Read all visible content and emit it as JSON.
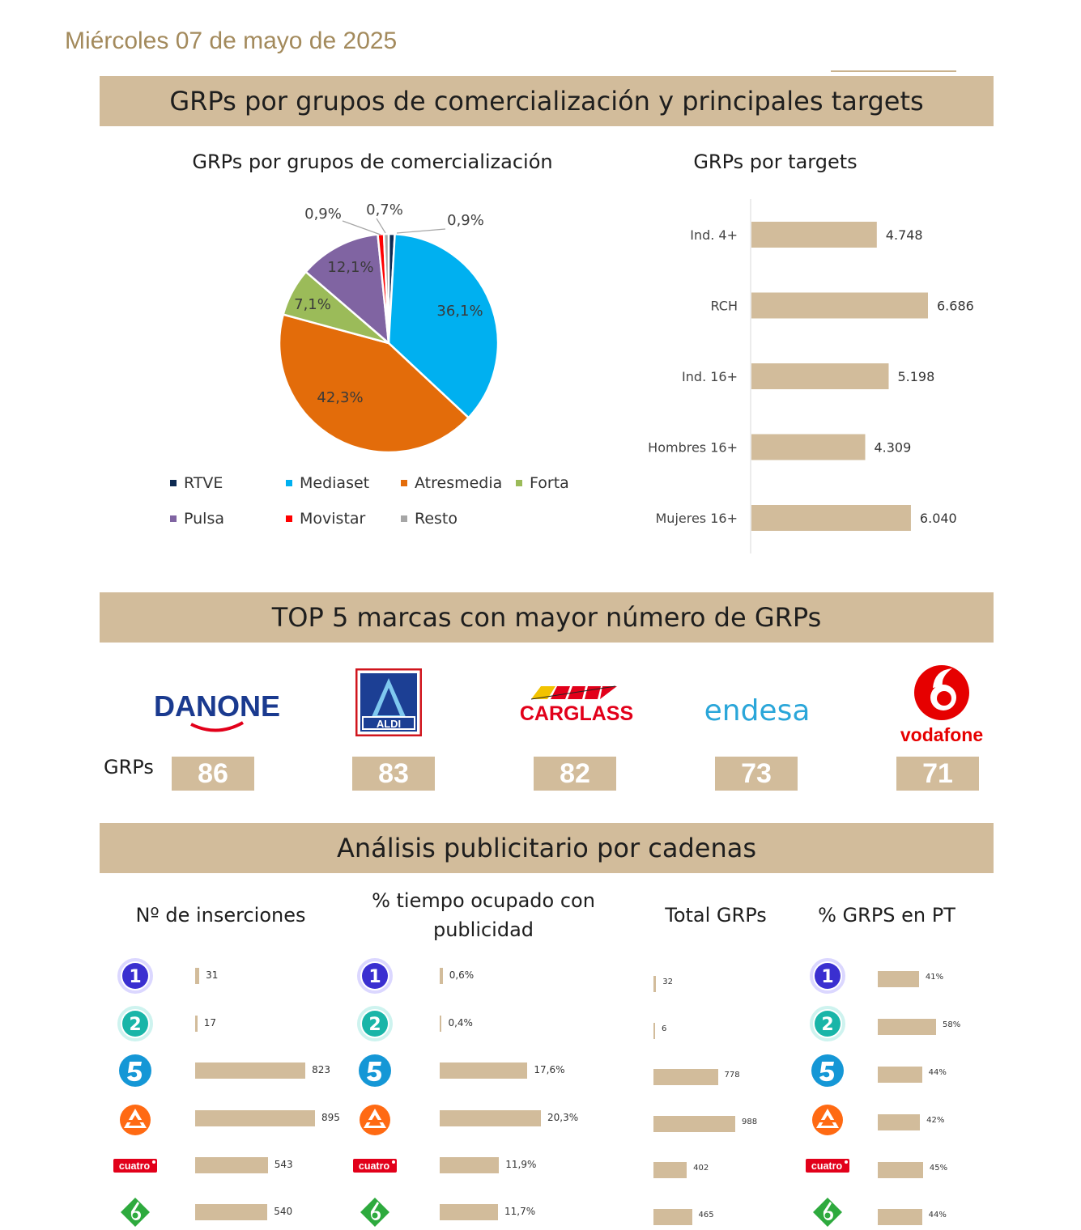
{
  "date": "Miércoles 07 de mayo de 2025",
  "section1": {
    "title": "GRPs por grupos de comercialización y principales targets",
    "pie_title": "GRPs por grupos de comercialización",
    "bar_title": "GRPs por targets"
  },
  "section2": {
    "title": "TOP 5 marcas con mayor número de GRPs",
    "row_label": "GRPs"
  },
  "section3": {
    "title": "Análisis publicitario por cadenas",
    "col1": "Nº de inserciones",
    "col2_line1": "% tiempo ocupado con",
    "col2_line2": "publicidad",
    "col3": "Total GRPs",
    "col4": "% GRPS en PT"
  },
  "brands": [
    {
      "name": "DANONE",
      "grps": "86"
    },
    {
      "name": "ALDI",
      "grps": "83"
    },
    {
      "name": "CARGLASS",
      "grps": "82"
    },
    {
      "name": "endesa",
      "grps": "73"
    },
    {
      "name": "vodafone",
      "grps": "71"
    }
  ],
  "channels": [
    "La 1",
    "La 2",
    "Telecinco",
    "Antena 3",
    "Cuatro",
    "laSexta"
  ],
  "channel_logo_text": {
    "la1": "1",
    "la2": "2",
    "cuatro": "cuatro"
  },
  "chart_data": [
    {
      "type": "pie",
      "title": "GRPs por grupos de comercialización",
      "categories": [
        "RTVE",
        "Mediaset",
        "Atresmedia",
        "Forta",
        "Pulsa",
        "Movistar",
        "Resto"
      ],
      "values": [
        0.9,
        36.1,
        42.3,
        7.1,
        12.1,
        0.9,
        0.7
      ],
      "labels": [
        "0,9%",
        "36,1%",
        "42,3%",
        "7,1%",
        "12,1%",
        "0,9%",
        "0,7%"
      ],
      "colors": [
        "#0d2a52",
        "#00b0f0",
        "#e36c0a",
        "#9bbb59",
        "#8064a2",
        "#ff0000",
        "#a6a6a6"
      ],
      "legend": "bottom"
    },
    {
      "type": "bar",
      "title": "GRPs por targets",
      "orientation": "horizontal",
      "categories": [
        "Ind. 4+",
        "RCH",
        "Ind. 16+",
        "Hombres 16+",
        "Mujeres 16+"
      ],
      "values": [
        4748,
        6686,
        5198,
        4309,
        6040
      ],
      "labels": [
        "4.748",
        "6.686",
        "5.198",
        "4.309",
        "6.040"
      ],
      "color": "#d2bc9b"
    },
    {
      "type": "bar",
      "title": "Nº de inserciones",
      "orientation": "horizontal",
      "categories": [
        "La 1",
        "La 2",
        "Telecinco",
        "Antena 3",
        "Cuatro",
        "laSexta"
      ],
      "values": [
        31,
        17,
        823,
        895,
        543,
        540
      ],
      "labels": [
        "31",
        "17",
        "823",
        "895",
        "543",
        "540"
      ]
    },
    {
      "type": "bar",
      "title": "% tiempo ocupado con publicidad",
      "orientation": "horizontal",
      "categories": [
        "La 1",
        "La 2",
        "Telecinco",
        "Antena 3",
        "Cuatro",
        "laSexta"
      ],
      "values": [
        0.6,
        0.4,
        17.6,
        20.3,
        11.9,
        11.7
      ],
      "labels": [
        "0,6%",
        "0,4%",
        "17,6%",
        "20,3%",
        "11,9%",
        "11,7%"
      ]
    },
    {
      "type": "bar",
      "title": "Total GRPs",
      "orientation": "horizontal",
      "categories": [
        "La 1",
        "La 2",
        "Telecinco",
        "Antena 3",
        "Cuatro",
        "laSexta"
      ],
      "values": [
        32,
        6,
        778,
        988,
        402,
        465
      ],
      "labels": [
        "32",
        "6",
        "778",
        "988",
        "402",
        "465"
      ]
    },
    {
      "type": "bar",
      "title": "% GRPS en PT",
      "orientation": "horizontal",
      "categories": [
        "La 1",
        "La 2",
        "Telecinco",
        "Antena 3",
        "Cuatro",
        "laSexta"
      ],
      "values": [
        41,
        58,
        44,
        42,
        45,
        44
      ],
      "labels": [
        "41%",
        "58%",
        "44%",
        "42%",
        "45%",
        "44%"
      ]
    }
  ]
}
